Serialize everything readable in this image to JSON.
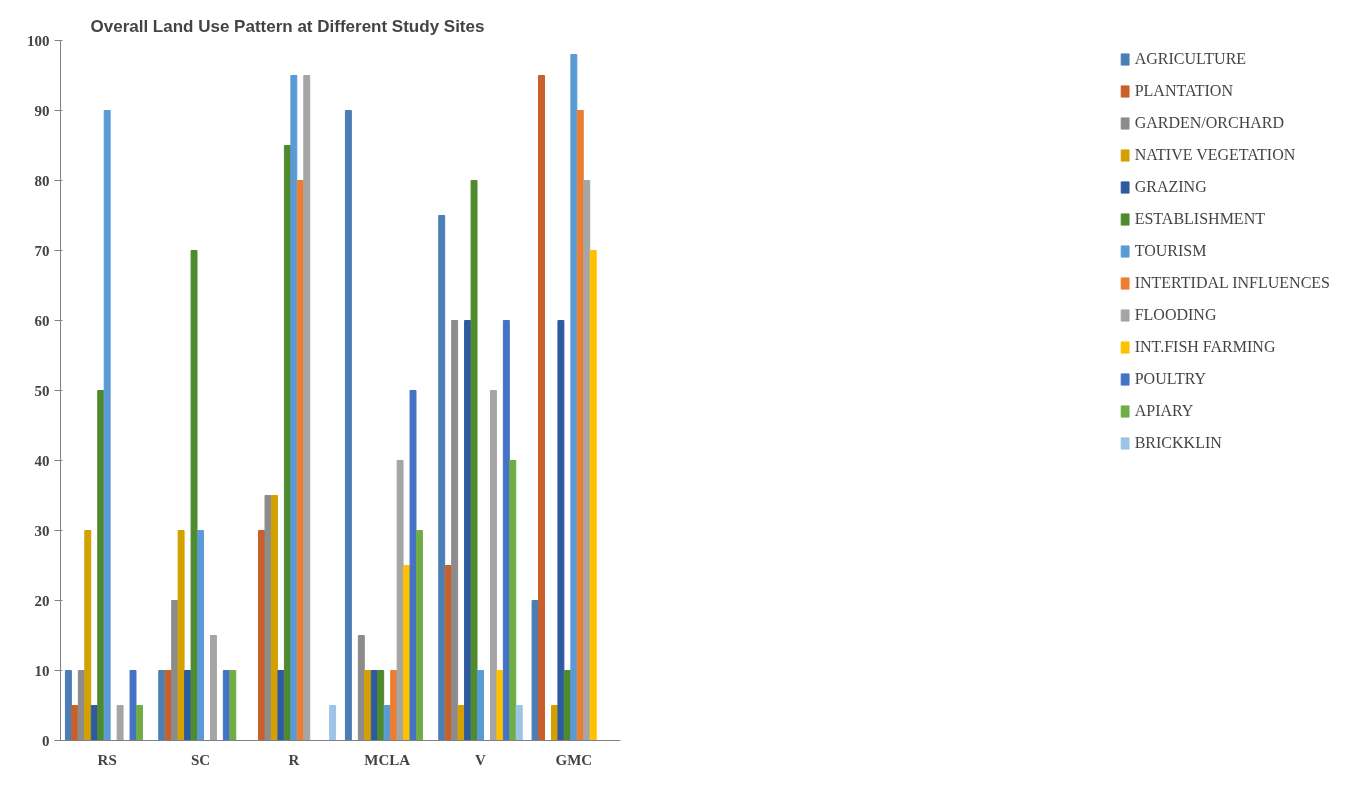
{
  "chart_data": {
    "type": "bar",
    "title": "Overall Land Use Pattern at Different Study Sites",
    "categories": [
      "RS",
      "SC",
      "R",
      "MCLA",
      "V",
      "GMC"
    ],
    "series": [
      {
        "name": "AGRICULTURE",
        "color": "#4a7eb4",
        "values": [
          10,
          10,
          0,
          90,
          75,
          20
        ]
      },
      {
        "name": "PLANTATION",
        "color": "#c8602a",
        "values": [
          5,
          10,
          30,
          0,
          25,
          95
        ]
      },
      {
        "name": "GARDEN/ORCHARD",
        "color": "#8c8c8c",
        "values": [
          10,
          20,
          35,
          15,
          60,
          0
        ]
      },
      {
        "name": "NATIVE VEGETATION",
        "color": "#d4a000",
        "values": [
          30,
          30,
          35,
          10,
          5,
          5
        ]
      },
      {
        "name": "GRAZING",
        "color": "#2e5aa0",
        "values": [
          5,
          10,
          10,
          10,
          60,
          60
        ]
      },
      {
        "name": "ESTABLISHMENT",
        "color": "#4f8a2e",
        "values": [
          50,
          70,
          85,
          10,
          80,
          10
        ]
      },
      {
        "name": "TOURISM",
        "color": "#5b9bd5",
        "values": [
          90,
          30,
          95,
          5,
          10,
          98
        ]
      },
      {
        "name": "INTERTIDAL INFLUENCES",
        "color": "#ed7d31",
        "values": [
          0,
          0,
          80,
          10,
          0,
          90
        ]
      },
      {
        "name": "FLOODING",
        "color": "#a5a5a5",
        "values": [
          5,
          15,
          95,
          40,
          50,
          80
        ]
      },
      {
        "name": "INT.FISH FARMING",
        "color": "#ffc000",
        "values": [
          0,
          0,
          0,
          25,
          10,
          70
        ]
      },
      {
        "name": "POULTRY",
        "color": "#4472c4",
        "values": [
          10,
          10,
          0,
          50,
          60,
          0
        ]
      },
      {
        "name": "APIARY",
        "color": "#70ad47",
        "values": [
          5,
          10,
          0,
          30,
          40,
          0
        ]
      },
      {
        "name": "BRICKKLIN",
        "color": "#9dc3e6",
        "values": [
          0,
          0,
          5,
          0,
          5,
          0
        ]
      }
    ],
    "ylim": [
      0,
      100
    ],
    "yticks": [
      0,
      10,
      20,
      30,
      40,
      50,
      60,
      70,
      80,
      90,
      100
    ],
    "grid": false,
    "legend": "right"
  }
}
